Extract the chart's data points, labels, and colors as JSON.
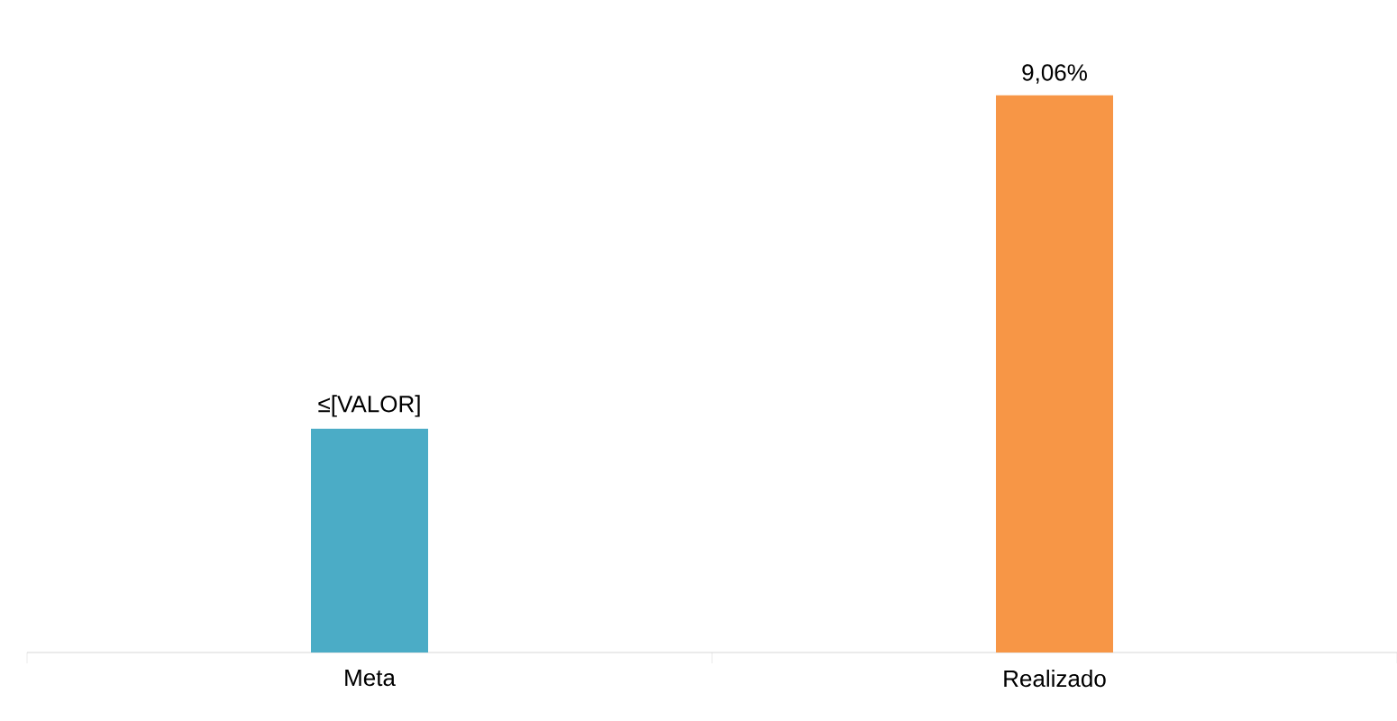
{
  "chart_data": {
    "type": "bar",
    "categories": [
      "Meta",
      "Realizado"
    ],
    "values": [
      3.64,
      9.06
    ],
    "colors": [
      "#4bacc6",
      "#f79646"
    ],
    "value_labels": [
      "≤[VALOR]",
      "9,06%"
    ]
  }
}
